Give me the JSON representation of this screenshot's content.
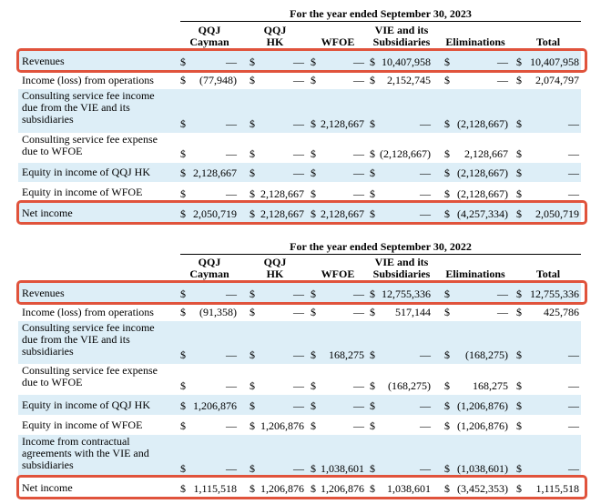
{
  "columns": [
    {
      "key": "cayman",
      "header": "QQJ\nCayman"
    },
    {
      "key": "hk",
      "header": "QQJ\nHK"
    },
    {
      "key": "wfoe",
      "header": "WFOE"
    },
    {
      "key": "vie",
      "header": "VIE and its\nSubsidiaries"
    },
    {
      "key": "elim",
      "header": "Eliminations"
    },
    {
      "key": "total",
      "header": "Total"
    }
  ],
  "tables": [
    {
      "period": "For the year ended September 30, 2023",
      "rows": [
        {
          "label": "Revenues",
          "values": [
            "—",
            "—",
            "—",
            "10,407,958",
            "—",
            "10,407,958"
          ]
        },
        {
          "label": "Income (loss) from operations",
          "values": [
            "(77,948)",
            "—",
            "—",
            "2,152,745",
            "—",
            "2,074,797"
          ]
        },
        {
          "label": "Consulting service fee income\ndue from the VIE and its\nsubsidiaries",
          "values": [
            "—",
            "—",
            "2,128,667",
            "—",
            "(2,128,667)",
            "—"
          ]
        },
        {
          "label": "Consulting service fee expense\ndue to WFOE",
          "values": [
            "—",
            "—",
            "—",
            "(2,128,667)",
            "2,128,667",
            "—"
          ]
        },
        {
          "label": "Equity in income of QQJ HK",
          "values": [
            "2,128,667",
            "—",
            "—",
            "—",
            "(2,128,667)",
            "—"
          ]
        },
        {
          "label": "Equity in income of WFOE",
          "values": [
            "—",
            "2,128,667",
            "—",
            "—",
            "(2,128,667)",
            "—"
          ]
        },
        {
          "label": "Net income",
          "values": [
            "2,050,719",
            "2,128,667",
            "2,128,667",
            "—",
            "(4,257,334)",
            "2,050,719"
          ]
        }
      ]
    },
    {
      "period": "For the year ended September 30, 2022",
      "rows": [
        {
          "label": "Revenues",
          "values": [
            "—",
            "—",
            "—",
            "12,755,336",
            "—",
            "12,755,336"
          ]
        },
        {
          "label": "Income (loss) from operations",
          "values": [
            "(91,358)",
            "—",
            "—",
            "517,144",
            "—",
            "425,786"
          ]
        },
        {
          "label": "Consulting service fee income\ndue from the VIE and its\nsubsidiaries",
          "values": [
            "—",
            "—",
            "168,275",
            "—",
            "(168,275)",
            "—"
          ]
        },
        {
          "label": "Consulting service fee expense\ndue to WFOE",
          "values": [
            "—",
            "—",
            "—",
            "(168,275)",
            "168,275",
            "—"
          ]
        },
        {
          "label": "Equity in income of QQJ HK",
          "values": [
            "1,206,876",
            "—",
            "—",
            "—",
            "(1,206,876)",
            "—"
          ]
        },
        {
          "label": "Equity in income of WFOE",
          "values": [
            "—",
            "1,206,876",
            "—",
            "—",
            "(1,206,876)",
            "—"
          ]
        },
        {
          "label": "Income from contractual\nagreements with the VIE and\nsubsidiaries",
          "values": [
            "—",
            "—",
            "1,038,601",
            "—",
            "(1,038,601)",
            "—"
          ]
        },
        {
          "label": "Net income",
          "values": [
            "1,115,518",
            "1,206,876",
            "1,206,876",
            "1,038,601",
            "(3,452,353)",
            "1,115,518"
          ]
        }
      ]
    }
  ],
  "currency_symbol": "$",
  "colors": {
    "row_shade": "#ddeef7",
    "highlight_border": "#e0533c"
  }
}
